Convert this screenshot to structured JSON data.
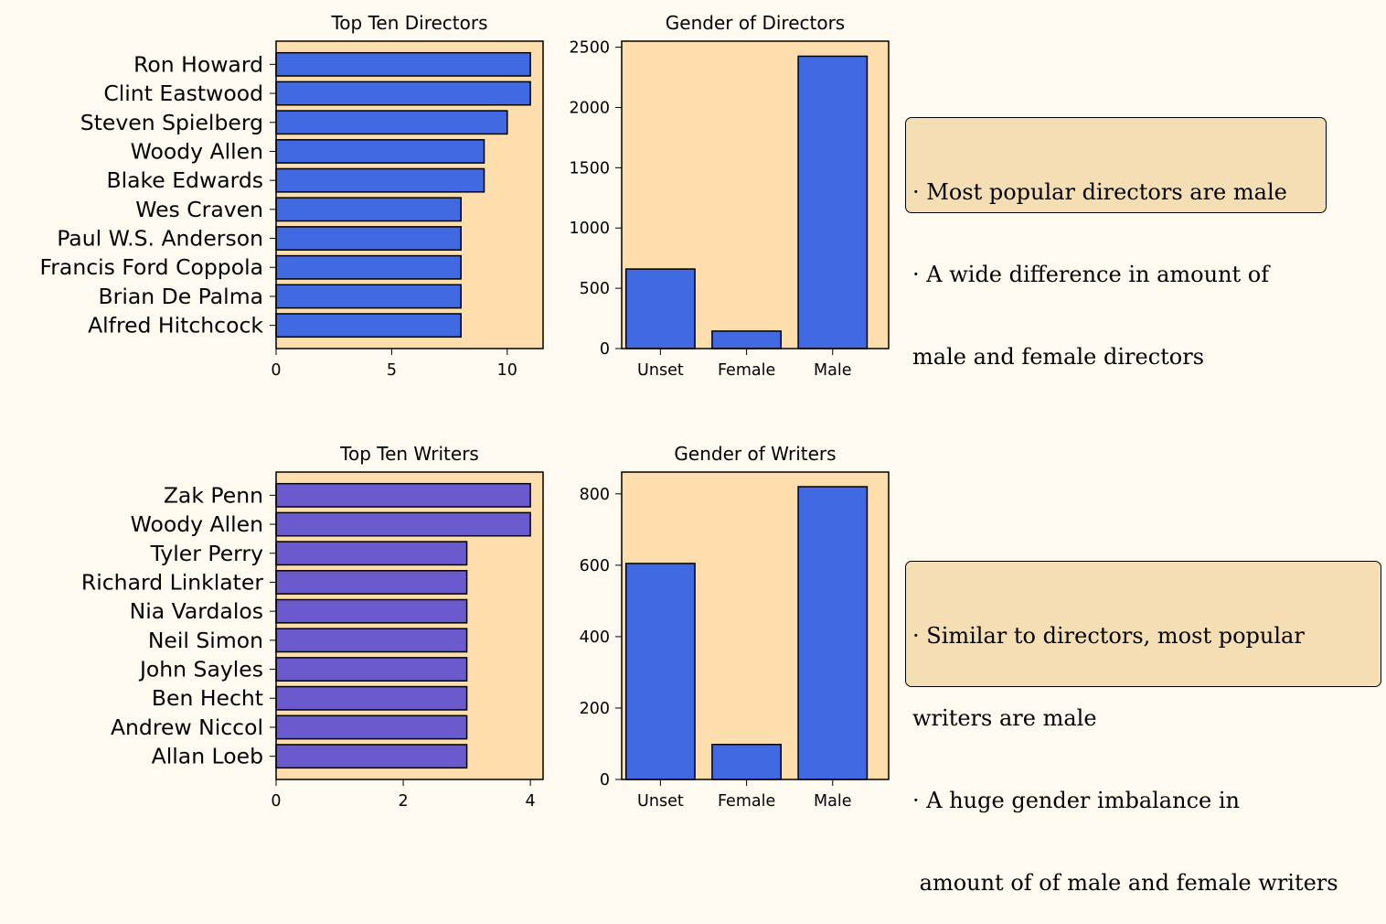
{
  "chart_data": [
    {
      "type": "bar",
      "orientation": "horizontal",
      "title": "Top Ten Directors",
      "categories": [
        "Ron Howard",
        "Clint Eastwood",
        "Steven Spielberg",
        "Woody Allen",
        "Blake Edwards",
        "Wes Craven",
        "Paul W.S. Anderson",
        "Francis Ford Coppola",
        "Brian De Palma",
        "Alfred Hitchcock"
      ],
      "values": [
        11,
        11,
        10,
        9,
        9,
        8,
        8,
        8,
        8,
        8
      ],
      "xlim": [
        0,
        11.55
      ],
      "xticks": [
        0,
        5,
        10
      ],
      "color": "#4169e1",
      "background": "#ffdead",
      "grid": false
    },
    {
      "type": "bar",
      "title": "Gender of Directors",
      "categories": [
        "Unset",
        "Female",
        "Male"
      ],
      "values": [
        660,
        145,
        2425
      ],
      "ylim": [
        0,
        2550
      ],
      "yticks": [
        0,
        500,
        1000,
        1500,
        2000,
        2500
      ],
      "color": "#4169e1",
      "background": "#ffdead",
      "grid": false
    },
    {
      "type": "bar",
      "orientation": "horizontal",
      "title": "Top Ten Writers",
      "categories": [
        "Zak Penn",
        "Woody Allen",
        "Tyler Perry",
        "Richard Linklater",
        "Nia Vardalos",
        "Neil Simon",
        "John Sayles",
        "Ben Hecht",
        "Andrew Niccol",
        "Allan Loeb"
      ],
      "values": [
        4,
        4,
        3,
        3,
        3,
        3,
        3,
        3,
        3,
        3
      ],
      "xlim": [
        0,
        4.2
      ],
      "xticks": [
        0,
        2,
        4
      ],
      "color": "#6a5acd",
      "background": "#ffdead",
      "grid": false
    },
    {
      "type": "bar",
      "title": "Gender of Writers",
      "categories": [
        "Unset",
        "Female",
        "Male"
      ],
      "values": [
        605,
        98,
        820
      ],
      "ylim": [
        0,
        861
      ],
      "yticks": [
        0,
        200,
        400,
        600,
        800
      ],
      "color": "#4169e1",
      "background": "#ffdead",
      "grid": false
    }
  ],
  "notes": {
    "directors": [
      "· Most popular directors are male",
      "· A wide difference in amount of",
      "male and female directors"
    ],
    "writers": [
      "· Similar to directors, most popular",
      "writers are male",
      "· A huge gender imbalance in",
      " amount of of male and female writers"
    ]
  }
}
